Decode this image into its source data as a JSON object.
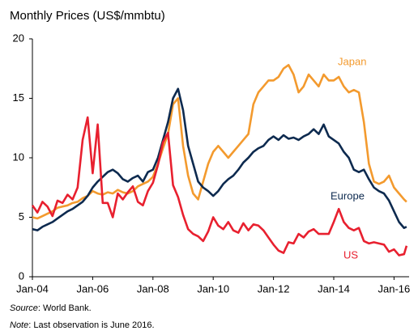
{
  "chart_data": {
    "type": "line",
    "title": "Monthly Prices (US$/mmbtu)",
    "x": [
      "2004-01",
      "2004-03",
      "2004-05",
      "2004-07",
      "2004-09",
      "2004-11",
      "2005-01",
      "2005-03",
      "2005-05",
      "2005-07",
      "2005-09",
      "2005-11",
      "2006-01",
      "2006-03",
      "2006-05",
      "2006-07",
      "2006-09",
      "2006-11",
      "2007-01",
      "2007-03",
      "2007-05",
      "2007-07",
      "2007-09",
      "2007-11",
      "2008-01",
      "2008-03",
      "2008-05",
      "2008-07",
      "2008-09",
      "2008-11",
      "2009-01",
      "2009-03",
      "2009-05",
      "2009-07",
      "2009-09",
      "2009-11",
      "2010-01",
      "2010-03",
      "2010-05",
      "2010-07",
      "2010-09",
      "2010-11",
      "2011-01",
      "2011-03",
      "2011-05",
      "2011-07",
      "2011-09",
      "2011-11",
      "2012-01",
      "2012-03",
      "2012-05",
      "2012-07",
      "2012-09",
      "2012-11",
      "2013-01",
      "2013-03",
      "2013-05",
      "2013-07",
      "2013-09",
      "2013-11",
      "2014-01",
      "2014-03",
      "2014-05",
      "2014-07",
      "2014-09",
      "2014-11",
      "2015-01",
      "2015-03",
      "2015-05",
      "2015-07",
      "2015-09",
      "2015-11",
      "2016-01",
      "2016-03",
      "2016-05",
      "2016-06"
    ],
    "series": [
      {
        "name": "Japan",
        "color": "#f39a2e",
        "values": [
          5.0,
          4.9,
          5.1,
          5.3,
          5.5,
          5.8,
          5.9,
          6.0,
          6.2,
          6.3,
          6.6,
          6.8,
          7.2,
          7.0,
          6.9,
          7.1,
          7.0,
          7.3,
          7.1,
          7.0,
          7.2,
          7.6,
          7.8,
          8.0,
          8.4,
          9.5,
          10.8,
          12.0,
          14.5,
          15.0,
          11.0,
          8.5,
          7.0,
          6.5,
          8.0,
          9.5,
          10.5,
          11.0,
          10.5,
          10.0,
          10.5,
          11.0,
          11.5,
          12.0,
          14.5,
          15.5,
          16.0,
          16.5,
          16.5,
          16.8,
          17.5,
          17.8,
          17.0,
          15.5,
          16.0,
          17.0,
          16.5,
          16.0,
          17.0,
          16.5,
          16.5,
          16.8,
          16.0,
          15.5,
          15.7,
          15.5,
          13.0,
          9.5,
          8.0,
          7.8,
          8.0,
          8.5,
          7.5,
          7.0,
          6.5,
          6.3
        ]
      },
      {
        "name": "Europe",
        "color": "#0d2a4f",
        "values": [
          4.0,
          3.9,
          4.2,
          4.4,
          4.6,
          4.9,
          5.2,
          5.5,
          5.7,
          6.0,
          6.3,
          6.8,
          7.5,
          8.0,
          8.4,
          8.8,
          9.0,
          8.7,
          8.2,
          8.0,
          8.3,
          8.5,
          8.0,
          8.8,
          9.0,
          10.0,
          11.5,
          13.0,
          15.0,
          15.8,
          14.0,
          11.0,
          9.5,
          8.0,
          7.5,
          7.2,
          6.8,
          7.2,
          7.8,
          8.2,
          8.5,
          9.0,
          9.6,
          10.0,
          10.5,
          10.8,
          11.0,
          11.5,
          11.8,
          11.5,
          11.9,
          11.6,
          11.7,
          11.5,
          11.8,
          12.0,
          12.4,
          12.0,
          12.8,
          11.8,
          11.5,
          11.2,
          10.5,
          10.0,
          9.0,
          8.8,
          9.0,
          8.2,
          7.5,
          7.2,
          7.0,
          6.4,
          5.5,
          4.6,
          4.1,
          4.2
        ]
      },
      {
        "name": "US",
        "color": "#e8202f",
        "values": [
          6.0,
          5.4,
          6.3,
          5.9,
          5.1,
          6.4,
          6.2,
          6.9,
          6.5,
          7.5,
          11.5,
          13.4,
          8.7,
          12.8,
          6.2,
          6.2,
          5.0,
          7.0,
          6.5,
          7.1,
          7.6,
          6.3,
          6.0,
          7.2,
          7.9,
          9.4,
          11.3,
          12.1,
          7.7,
          6.7,
          5.2,
          4.0,
          3.6,
          3.4,
          3.0,
          3.8,
          5.0,
          4.3,
          4.0,
          4.6,
          3.9,
          3.7,
          4.5,
          3.9,
          4.4,
          4.3,
          3.9,
          3.3,
          2.7,
          2.2,
          2.0,
          2.9,
          2.8,
          3.6,
          3.3,
          3.8,
          4.0,
          3.6,
          3.6,
          3.6,
          4.6,
          5.7,
          4.6,
          4.1,
          3.9,
          4.1,
          3.0,
          2.8,
          2.9,
          2.8,
          2.7,
          2.1,
          2.3,
          1.8,
          1.9,
          2.6
        ]
      }
    ],
    "xlim": [
      "2004-01",
      "2016-07"
    ],
    "xticks": [
      {
        "value": "2004-01",
        "label": "Jan-04"
      },
      {
        "value": "2006-01",
        "label": "Jan-06"
      },
      {
        "value": "2008-01",
        "label": "Jan-08"
      },
      {
        "value": "2010-01",
        "label": "Jan-10"
      },
      {
        "value": "2012-01",
        "label": "Jan-12"
      },
      {
        "value": "2014-01",
        "label": "Jan-14"
      },
      {
        "value": "2016-01",
        "label": "Jan-16"
      }
    ],
    "ylim": [
      0,
      20
    ],
    "yticks": [
      0,
      5,
      10,
      15,
      20
    ],
    "grid": false,
    "notes": [
      {
        "label": "Source",
        "text": ": World Bank."
      },
      {
        "label": "Note",
        "text": ": Last observation is June 2016."
      }
    ]
  }
}
